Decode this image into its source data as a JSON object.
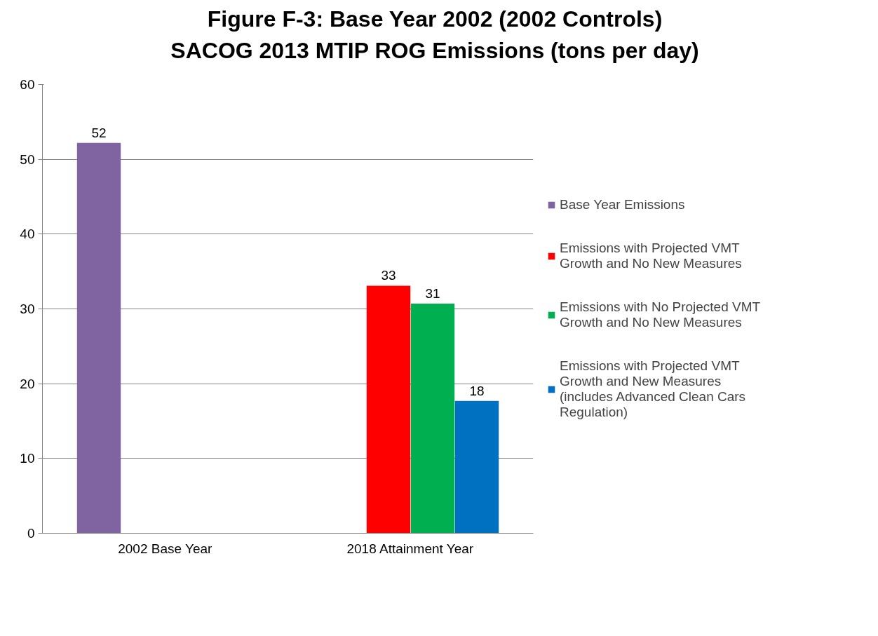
{
  "chart_data": {
    "type": "bar",
    "title": "Figure F-3:  Base Year 2002 (2002 Controls)\nSACOG 2013 MTIP ROG Emissions (tons per day)",
    "categories": [
      "2002 Base Year",
      "2018 Attainment Year"
    ],
    "series": [
      {
        "name": "Base Year Emissions",
        "color": "#8064a2",
        "values": [
          52.2,
          null
        ],
        "value_labels": [
          "52",
          null
        ]
      },
      {
        "name": "Emissions with Projected VMT Growth and No New Measures",
        "color": "#ff0000",
        "values": [
          null,
          33.1
        ],
        "value_labels": [
          null,
          "33"
        ]
      },
      {
        "name": "Emissions with No Projected VMT Growth and No New Measures",
        "color": "#00b050",
        "values": [
          null,
          30.7
        ],
        "value_labels": [
          null,
          "31"
        ]
      },
      {
        "name": "Emissions with Projected VMT Growth and New Measures (includes Advanced Clean Cars Regulation)",
        "color": "#0070c0",
        "values": [
          null,
          17.7
        ],
        "value_labels": [
          null,
          "18"
        ]
      }
    ],
    "ylim": [
      0,
      60
    ],
    "yticks": [
      0,
      10,
      20,
      30,
      40,
      50,
      60
    ],
    "grid": "y",
    "legend": "right"
  }
}
